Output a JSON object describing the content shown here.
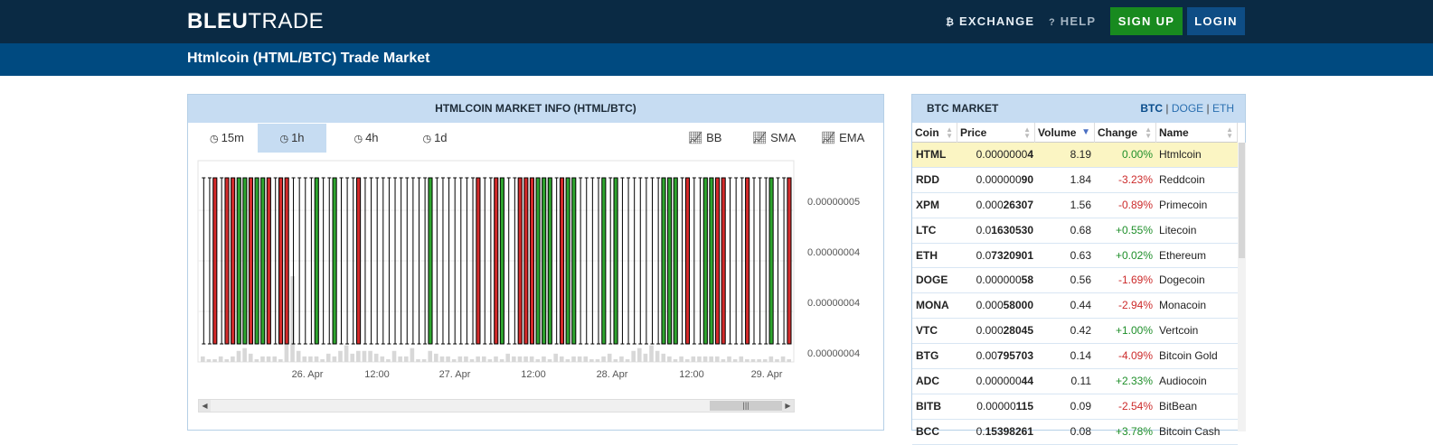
{
  "header": {
    "logo_bold": "BLEU",
    "logo_light": "TRADE",
    "nav": {
      "exchange_icon": "bitcoin-icon",
      "exchange_label": "EXCHANGE",
      "help_icon": "question-icon",
      "help_label": "HELP"
    },
    "signup_label": "SIGN UP",
    "login_label": "LOGIN"
  },
  "subheader": {
    "title": "Htmlcoin (HTML/BTC) Trade Market"
  },
  "market_info": {
    "title": "HTMLCOIN MARKET INFO (HTML/BTC)",
    "timeframes": [
      {
        "label": "15m",
        "active": false
      },
      {
        "label": "1h",
        "active": true
      },
      {
        "label": "4h",
        "active": false
      },
      {
        "label": "1d",
        "active": false
      }
    ],
    "indicators": [
      "BB",
      "SMA",
      "EMA"
    ],
    "colors": {
      "up": "#2fa52f",
      "down": "#d42b2b",
      "volume": "#d8d8d8",
      "active_tab": "#c6dcf2"
    }
  },
  "chart_data": {
    "type": "candlestick",
    "y_ticks": [
      "0.00000005",
      "0.00000004",
      "0.00000004",
      "0.00000004"
    ],
    "x_ticks": [
      "26. Apr",
      "12:00",
      "27. Apr",
      "12:00",
      "28. Apr",
      "12:00",
      "29. Apr"
    ],
    "candles": [
      "n",
      "n",
      "d",
      "n",
      "d",
      "d",
      "u",
      "u",
      "d",
      "u",
      "u",
      "d",
      "n",
      "d",
      "d",
      "n",
      "n",
      "n",
      "n",
      "u",
      "n",
      "n",
      "u",
      "n",
      "n",
      "n",
      "d",
      "n",
      "n",
      "n",
      "n",
      "n",
      "n",
      "n",
      "n",
      "n",
      "n",
      "n",
      "u",
      "n",
      "n",
      "n",
      "n",
      "n",
      "n",
      "n",
      "d",
      "n",
      "n",
      "d",
      "u",
      "n",
      "n",
      "d",
      "d",
      "d",
      "u",
      "u",
      "u",
      "n",
      "d",
      "u",
      "u",
      "n",
      "n",
      "n",
      "n",
      "u",
      "n",
      "u",
      "n",
      "n",
      "n",
      "n",
      "n",
      "n",
      "n",
      "u",
      "u",
      "u",
      "n",
      "d",
      "n",
      "n",
      "u",
      "u",
      "d",
      "d",
      "n",
      "n",
      "n",
      "d",
      "n",
      "n",
      "n",
      "u",
      "n",
      "n",
      "d"
    ],
    "volumes": [
      2,
      1,
      1,
      2,
      1,
      2,
      4,
      5,
      3,
      1,
      2,
      2,
      2,
      1,
      7,
      31,
      4,
      2,
      2,
      2,
      1,
      3,
      2,
      4,
      6,
      3,
      4,
      4,
      4,
      3,
      2,
      1,
      4,
      2,
      2,
      5,
      1,
      1,
      4,
      3,
      2,
      2,
      1,
      2,
      2,
      1,
      2,
      2,
      1,
      2,
      1,
      3,
      2,
      2,
      2,
      2,
      1,
      2,
      1,
      3,
      2,
      1,
      2,
      2,
      2,
      1,
      1,
      2,
      3,
      1,
      2,
      1,
      4,
      5,
      3,
      6,
      4,
      3,
      2,
      1,
      2,
      1,
      2,
      2,
      2,
      2,
      2,
      1,
      2,
      1,
      2,
      1,
      1,
      1,
      1,
      2,
      1,
      2,
      1
    ]
  },
  "btc_market": {
    "title": "BTC MARKET",
    "links": [
      "BTC",
      "DOGE",
      "ETH"
    ],
    "columns": [
      "Coin",
      "Price",
      "Volume",
      "Change",
      "Name"
    ],
    "rows": [
      {
        "coin": "HTML",
        "price_a": "0.0000000",
        "price_b": "4",
        "volume": "8.19",
        "change": "0.00%",
        "dir": "up",
        "name": "Htmlcoin",
        "selected": true
      },
      {
        "coin": "RDD",
        "price_a": "0.000000",
        "price_b": "90",
        "volume": "1.84",
        "change": "-3.23%",
        "dir": "dn",
        "name": "Reddcoin",
        "selected": false
      },
      {
        "coin": "XPM",
        "price_a": "0.000",
        "price_b": "26307",
        "volume": "1.56",
        "change": "-0.89%",
        "dir": "dn",
        "name": "Primecoin",
        "selected": false
      },
      {
        "coin": "LTC",
        "price_a": "0.0",
        "price_b": "1630530",
        "volume": "0.68",
        "change": "+0.55%",
        "dir": "up",
        "name": "Litecoin",
        "selected": false
      },
      {
        "coin": "ETH",
        "price_a": "0.0",
        "price_b": "7320901",
        "volume": "0.63",
        "change": "+0.02%",
        "dir": "up",
        "name": "Ethereum",
        "selected": false
      },
      {
        "coin": "DOGE",
        "price_a": "0.000000",
        "price_b": "58",
        "volume": "0.56",
        "change": "-1.69%",
        "dir": "dn",
        "name": "Dogecoin",
        "selected": false
      },
      {
        "coin": "MONA",
        "price_a": "0.000",
        "price_b": "58000",
        "volume": "0.44",
        "change": "-2.94%",
        "dir": "dn",
        "name": "Monacoin",
        "selected": false
      },
      {
        "coin": "VTC",
        "price_a": "0.000",
        "price_b": "28045",
        "volume": "0.42",
        "change": "+1.00%",
        "dir": "up",
        "name": "Vertcoin",
        "selected": false
      },
      {
        "coin": "BTG",
        "price_a": "0.00",
        "price_b": "795703",
        "volume": "0.14",
        "change": "-4.09%",
        "dir": "dn",
        "name": "Bitcoin Gold",
        "selected": false
      },
      {
        "coin": "ADC",
        "price_a": "0.000000",
        "price_b": "44",
        "volume": "0.11",
        "change": "+2.33%",
        "dir": "up",
        "name": "Audiocoin",
        "selected": false
      },
      {
        "coin": "BITB",
        "price_a": "0.00000",
        "price_b": "115",
        "volume": "0.09",
        "change": "-2.54%",
        "dir": "dn",
        "name": "BitBean",
        "selected": false
      },
      {
        "coin": "BCC",
        "price_a": "0.",
        "price_b": "15398261",
        "volume": "0.08",
        "change": "+3.78%",
        "dir": "up",
        "name": "Bitcoin Cash",
        "selected": false
      }
    ]
  }
}
